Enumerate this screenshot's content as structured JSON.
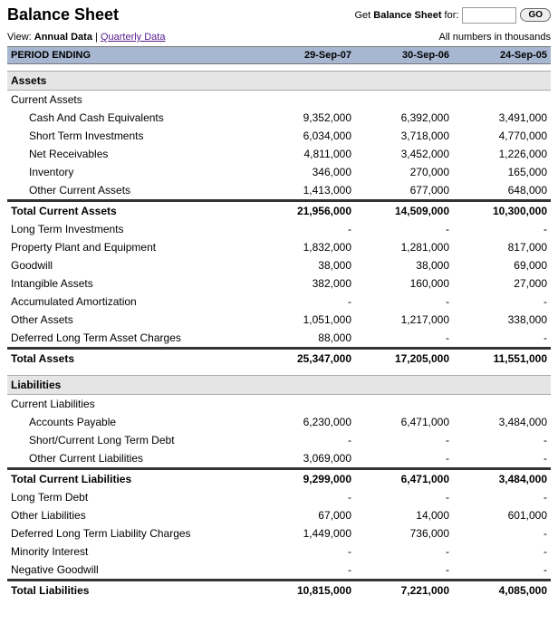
{
  "header": {
    "title": "Balance Sheet",
    "lookup_prefix": "Get ",
    "lookup_bold": "Balance Sheet",
    "lookup_suffix": " for:",
    "go": "GO"
  },
  "viewbar": {
    "prefix": "View: ",
    "annual": "Annual Data",
    "sep": " | ",
    "quarterly": "Quarterly Data",
    "note": "All numbers in thousands"
  },
  "periods": {
    "label": "PERIOD ENDING",
    "c1": "29-Sep-07",
    "c2": "30-Sep-06",
    "c3": "24-Sep-05"
  },
  "sections": {
    "assets": "Assets",
    "current_assets": "Current Assets",
    "liabilities": "Liabilities",
    "current_liabilities": "Current Liabilities"
  },
  "rows": {
    "cash": {
      "label": "Cash And Cash Equivalents",
      "v1": "9,352,000",
      "v2": "6,392,000",
      "v3": "3,491,000"
    },
    "sti": {
      "label": "Short Term Investments",
      "v1": "6,034,000",
      "v2": "3,718,000",
      "v3": "4,770,000"
    },
    "netrec": {
      "label": "Net Receivables",
      "v1": "4,811,000",
      "v2": "3,452,000",
      "v3": "1,226,000"
    },
    "inventory": {
      "label": "Inventory",
      "v1": "346,000",
      "v2": "270,000",
      "v3": "165,000"
    },
    "oca": {
      "label": "Other Current Assets",
      "v1": "1,413,000",
      "v2": "677,000",
      "v3": "648,000"
    },
    "tca": {
      "label": "Total Current Assets",
      "v1": "21,956,000",
      "v2": "14,509,000",
      "v3": "10,300,000"
    },
    "lti": {
      "label": "Long Term Investments",
      "v1": "-",
      "v2": "-",
      "v3": "-"
    },
    "ppe": {
      "label": "Property Plant and Equipment",
      "v1": "1,832,000",
      "v2": "1,281,000",
      "v3": "817,000"
    },
    "goodwill": {
      "label": "Goodwill",
      "v1": "38,000",
      "v2": "38,000",
      "v3": "69,000"
    },
    "intangible": {
      "label": "Intangible Assets",
      "v1": "382,000",
      "v2": "160,000",
      "v3": "27,000"
    },
    "amort": {
      "label": "Accumulated Amortization",
      "v1": "-",
      "v2": "-",
      "v3": "-"
    },
    "oassets": {
      "label": "Other Assets",
      "v1": "1,051,000",
      "v2": "1,217,000",
      "v3": "338,000"
    },
    "dltac": {
      "label": "Deferred Long Term Asset Charges",
      "v1": "88,000",
      "v2": "-",
      "v3": "-"
    },
    "ta": {
      "label": "Total Assets",
      "v1": "25,347,000",
      "v2": "17,205,000",
      "v3": "11,551,000"
    },
    "ap": {
      "label": "Accounts Payable",
      "v1": "6,230,000",
      "v2": "6,471,000",
      "v3": "3,484,000"
    },
    "scltd": {
      "label": "Short/Current Long Term Debt",
      "v1": "-",
      "v2": "-",
      "v3": "-"
    },
    "ocl": {
      "label": "Other Current Liabilities",
      "v1": "3,069,000",
      "v2": "-",
      "v3": "-"
    },
    "tcl": {
      "label": "Total Current Liabilities",
      "v1": "9,299,000",
      "v2": "6,471,000",
      "v3": "3,484,000"
    },
    "ltd": {
      "label": "Long Term Debt",
      "v1": "-",
      "v2": "-",
      "v3": "-"
    },
    "ol": {
      "label": "Other Liabilities",
      "v1": "67,000",
      "v2": "14,000",
      "v3": "601,000"
    },
    "dltlc": {
      "label": "Deferred Long Term Liability Charges",
      "v1": "1,449,000",
      "v2": "736,000",
      "v3": "-"
    },
    "mi": {
      "label": "Minority Interest",
      "v1": "-",
      "v2": "-",
      "v3": "-"
    },
    "ng": {
      "label": "Negative Goodwill",
      "v1": "-",
      "v2": "-",
      "v3": "-"
    },
    "tl": {
      "label": "Total Liabilities",
      "v1": "10,815,000",
      "v2": "7,221,000",
      "v3": "4,085,000"
    }
  },
  "colors": {
    "period_bg": "#a7b6d1",
    "section_bg": "#e5e5e5",
    "link": "#551a8b",
    "rule": "#333333"
  }
}
